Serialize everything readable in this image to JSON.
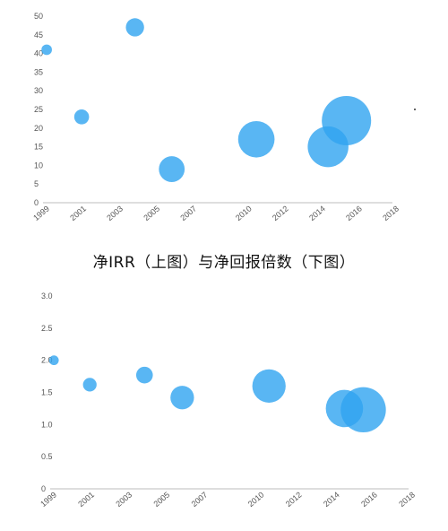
{
  "caption": "净IRR（上图）与净回报倍数（下图）",
  "colors": {
    "bubble": "#2fa4f0",
    "axis": "#bdbdbd",
    "tick": "#555555"
  },
  "chart_data": [
    {
      "type": "scatter",
      "title": "",
      "xlabel": "",
      "ylabel": "",
      "xlim": [
        1999,
        2018
      ],
      "ylim": [
        0,
        50
      ],
      "xticks": [
        "1999",
        "2001",
        "2003",
        "2005",
        "2007",
        "2010",
        "2012",
        "2014",
        "2016",
        "2018"
      ],
      "yticks": [
        "0",
        "5",
        "10",
        "15",
        "20",
        "25",
        "30",
        "35",
        "40",
        "45",
        "50"
      ],
      "grid": false,
      "points": [
        {
          "x": 1999.2,
          "y": 41,
          "size": 0.5
        },
        {
          "x": 2001.1,
          "y": 23,
          "size": 1
        },
        {
          "x": 2004.0,
          "y": 47,
          "size": 1.5
        },
        {
          "x": 2006.0,
          "y": 9,
          "size": 3
        },
        {
          "x": 2010.6,
          "y": 17,
          "size": 6
        },
        {
          "x": 2014.5,
          "y": 15,
          "size": 7.5
        },
        {
          "x": 2015.5,
          "y": 22,
          "size": 11
        }
      ]
    },
    {
      "type": "scatter",
      "title": "",
      "xlabel": "",
      "ylabel": "",
      "xlim": [
        1999,
        2018
      ],
      "ylim": [
        0,
        3.0
      ],
      "xticks": [
        "1999",
        "2001",
        "2003",
        "2005",
        "2007",
        "2010",
        "2012",
        "2014",
        "2016",
        "2018"
      ],
      "yticks": [
        "0",
        "0.5",
        "1.0",
        "1.5",
        "2.0",
        "2.5",
        "3.0"
      ],
      "grid": false,
      "points": [
        {
          "x": 1999.2,
          "y": 2.0,
          "size": 0.5
        },
        {
          "x": 2001.1,
          "y": 1.62,
          "size": 1
        },
        {
          "x": 2004.0,
          "y": 1.77,
          "size": 1.5
        },
        {
          "x": 2006.0,
          "y": 1.42,
          "size": 3
        },
        {
          "x": 2010.6,
          "y": 1.6,
          "size": 6
        },
        {
          "x": 2014.6,
          "y": 1.25,
          "size": 7.5
        },
        {
          "x": 2015.6,
          "y": 1.23,
          "size": 11
        }
      ]
    }
  ]
}
